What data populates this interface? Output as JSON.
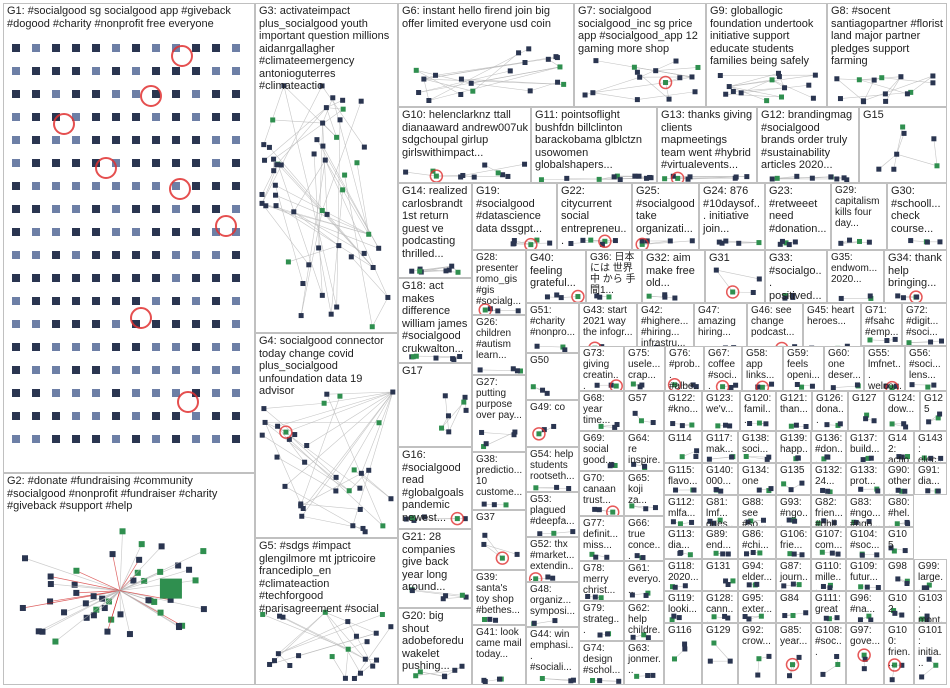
{
  "title": "",
  "groups": [
    {
      "id": "G1",
      "label": "G1: #socialgood sg socialgood app #giveback #dogood #charity #nonprofit free everyone",
      "kind": "grid"
    },
    {
      "id": "G2",
      "label": "G2: #donate #fundraising #community #socialgood #nonprofit #fundraiser #charity #giveback #support #help",
      "kind": "hub"
    },
    {
      "id": "G3",
      "label": "G3: activateimpact plus_socialgood youth important question millions aidanrgallagher #climateemergency antonioguterres #climateactio",
      "kind": "network"
    },
    {
      "id": "G4",
      "label": "G4: socialgood connector today change covid plus_socialgood unfoundation data 19 advisor",
      "kind": "network"
    },
    {
      "id": "G5",
      "label": "G5: #sdgs #impact glengilmore mt jptricoire francediplo_en #climateaction #techforgood #parisagreement #social",
      "kind": "network"
    },
    {
      "id": "G6",
      "label": "G6: instant hello firend join big offer limited everyone usd coin",
      "kind": "network"
    },
    {
      "id": "G7",
      "label": "G7: socialgood socialgood_inc sg price app #socialgood_app 12 gaming more shop",
      "kind": "network"
    },
    {
      "id": "G8",
      "label": "G8: #socent santiagopartner #florist land major partner pledges support farming",
      "kind": "network"
    },
    {
      "id": "G9",
      "label": "G9: globallogic foundation undertook initiative support educate students families being safely",
      "kind": "network"
    },
    {
      "id": "G10",
      "label": "G10: helenclarknz ttall dianaaward andrew007uk sdgchoupal girlup girlswithimpact...",
      "kind": "network"
    },
    {
      "id": "G11",
      "label": "G11: pointsoflight bushfdn billclinton barackobama glblctzn usowomen globalshapers...",
      "kind": "network"
    },
    {
      "id": "G12",
      "label": "G12: brandingmag #socialgood brands order truly #sustainability articles 2020...",
      "kind": "network"
    },
    {
      "id": "G13",
      "label": "G13: thanks giving clients mapmeetings team went #hybrid #virtualevents...",
      "kind": "network"
    },
    {
      "id": "G14",
      "label": "G14: realized carlosbrandt 1st return guest ve podcasting thrilled...",
      "kind": "network"
    },
    {
      "id": "G15",
      "label": "G15",
      "kind": "network"
    },
    {
      "id": "G16",
      "label": "G16: #socialgood read #globalgoals pandemic newest...",
      "kind": "network"
    },
    {
      "id": "G17",
      "label": "G17",
      "kind": "network"
    },
    {
      "id": "G18",
      "label": "G18: act makes difference william james #socialgood crukwalton...",
      "kind": "network"
    },
    {
      "id": "G19",
      "label": "G19: #socialgood #datascience data dssgpt...",
      "kind": "network"
    },
    {
      "id": "G20",
      "label": "G20: big shout adobeforedu wakelet pushing...",
      "kind": "network"
    },
    {
      "id": "G21",
      "label": "G21: 28 companies give back year long around...",
      "kind": "network"
    },
    {
      "id": "G22",
      "label": "G22: citycurrent social entrepreneu...",
      "kind": "network"
    },
    {
      "id": "G23",
      "label": "G23: #retweeet need #donation...",
      "kind": "network"
    },
    {
      "id": "G24",
      "label": "G24: 876 #10daysof... initiative join...",
      "kind": "network"
    },
    {
      "id": "G25",
      "label": "G25: #socialgood take organizati...",
      "kind": "network"
    },
    {
      "id": "G26",
      "label": "G26: children #autism learn...",
      "kind": "network"
    },
    {
      "id": "G27",
      "label": "G27: putting purpose over pay...",
      "kind": "network"
    },
    {
      "id": "G28",
      "label": "G28: presenter romo_gis #gis #socialg...",
      "kind": "network"
    },
    {
      "id": "G29",
      "label": "G29: capitalism kills four day...",
      "kind": "network"
    },
    {
      "id": "G30",
      "label": "G30: #schooll... check course...",
      "kind": "network"
    },
    {
      "id": "G31",
      "label": "G31",
      "kind": "network"
    },
    {
      "id": "G32",
      "label": "G32: aim make free old...",
      "kind": "network"
    },
    {
      "id": "G33",
      "label": "G33: #socialgo... positived...",
      "kind": "network"
    },
    {
      "id": "G34",
      "label": "G34: thank help bringing...",
      "kind": "network"
    },
    {
      "id": "G35",
      "label": "G35: endwom... 2020...",
      "kind": "network"
    },
    {
      "id": "G36",
      "label": "G36: 日本 には 世界中 から 手間1...",
      "kind": "network"
    },
    {
      "id": "G37",
      "label": "G37",
      "kind": "network"
    },
    {
      "id": "G38",
      "label": "G38: predictio... 10 custome...",
      "kind": "network"
    },
    {
      "id": "G39",
      "label": "G39: santa's toy shop #bethes...",
      "kind": "network"
    },
    {
      "id": "G40",
      "label": "G40: feeling grateful...",
      "kind": "network"
    },
    {
      "id": "G41",
      "label": "G41: look came mail today...",
      "kind": "network"
    },
    {
      "id": "G42",
      "label": "G42: #highere... #hiring... infrastru...",
      "kind": "network"
    },
    {
      "id": "G43",
      "label": "G43: start 2021 way the infogr...",
      "kind": "network"
    },
    {
      "id": "G44",
      "label": "G44: win emphasi... #sociali...",
      "kind": "network"
    },
    {
      "id": "G45",
      "label": "G45: heart heroes...",
      "kind": "network"
    },
    {
      "id": "G46",
      "label": "G46: see change podcast...",
      "kind": "network"
    },
    {
      "id": "G47",
      "label": "G47: amazing hiring...",
      "kind": "network"
    },
    {
      "id": "G48",
      "label": "G48: organiz... symposi...",
      "kind": "network"
    },
    {
      "id": "G49",
      "label": "G49: co",
      "kind": "network"
    },
    {
      "id": "G50",
      "label": "G50",
      "kind": "network"
    },
    {
      "id": "G51",
      "label": "G51: #charity #nonpro...",
      "kind": "network"
    },
    {
      "id": "G52",
      "label": "G52: thx #market... extendin...",
      "kind": "network"
    },
    {
      "id": "G53",
      "label": "G53: plagued #deepfa...",
      "kind": "network"
    },
    {
      "id": "G54",
      "label": "G54: help students rootseth...",
      "kind": "network"
    },
    {
      "id": "G55",
      "label": "G55: lmfnet... welco...",
      "kind": "network"
    },
    {
      "id": "G56",
      "label": "G56: #soci... lens...",
      "kind": "network"
    },
    {
      "id": "G57",
      "label": "G57",
      "kind": "network"
    },
    {
      "id": "G58",
      "label": "G58: app links...",
      "kind": "network"
    },
    {
      "id": "G59",
      "label": "G59: feels openi...",
      "kind": "network"
    },
    {
      "id": "G60",
      "label": "G60: one deser...",
      "kind": "network"
    },
    {
      "id": "G61",
      "label": "G61: everyo...",
      "kind": "network"
    },
    {
      "id": "G62",
      "label": "G62: help childre...",
      "kind": "network"
    },
    {
      "id": "G63",
      "label": "G63: jonmer...",
      "kind": "network"
    },
    {
      "id": "G64",
      "label": "G64: re inspire...",
      "kind": "network"
    },
    {
      "id": "G65",
      "label": "G65: koji za...",
      "kind": "network"
    },
    {
      "id": "G66",
      "label": "G66: true conce...",
      "kind": "network"
    },
    {
      "id": "G67",
      "label": "G67: coffee #soci...",
      "kind": "network"
    },
    {
      "id": "G68",
      "label": "G68: year time...",
      "kind": "network"
    },
    {
      "id": "G69",
      "label": "G69: social good...",
      "kind": "network"
    },
    {
      "id": "G70",
      "label": "G70: canaan trust...",
      "kind": "network"
    },
    {
      "id": "G71",
      "label": "G71: #fsahc #emp...",
      "kind": "network"
    },
    {
      "id": "G72",
      "label": "G72: #digit... #soci...",
      "kind": "network"
    },
    {
      "id": "G73",
      "label": "G73: giving creatin...",
      "kind": "network"
    },
    {
      "id": "G74",
      "label": "G74: design #schol...",
      "kind": "network"
    },
    {
      "id": "G75",
      "label": "G75: usele... crap...",
      "kind": "network"
    },
    {
      "id": "G76",
      "label": "G76: #prob... #albe...",
      "kind": "network"
    },
    {
      "id": "G77",
      "label": "G77: definit... miss...",
      "kind": "network"
    },
    {
      "id": "G78",
      "label": "G78: merry christ...",
      "kind": "network"
    },
    {
      "id": "G79",
      "label": "G79: strateg...",
      "kind": "network"
    },
    {
      "id": "G80",
      "label": "G80: #hel... dele...",
      "kind": "network"
    },
    {
      "id": "G81",
      "label": "G81: lmf... ques...",
      "kind": "network"
    },
    {
      "id": "G82",
      "label": "G82: frien... #phil...",
      "kind": "network"
    },
    {
      "id": "G83",
      "label": "G83: #ngo... #ngo...",
      "kind": "network"
    },
    {
      "id": "G84",
      "label": "G84",
      "kind": "network"
    },
    {
      "id": "G85",
      "label": "G85: year...",
      "kind": "network"
    },
    {
      "id": "G86",
      "label": "G86: #chi...",
      "kind": "network"
    },
    {
      "id": "G87",
      "label": "G87: journ...",
      "kind": "network"
    },
    {
      "id": "G88",
      "label": "G88: see #so...",
      "kind": "network"
    },
    {
      "id": "G89",
      "label": "G89: end...",
      "kind": "network"
    },
    {
      "id": "G90",
      "label": "G90: other...",
      "kind": "network"
    },
    {
      "id": "G91",
      "label": "G91: dia...",
      "kind": "network"
    },
    {
      "id": "G92",
      "label": "G92: crow...",
      "kind": "network"
    },
    {
      "id": "G93",
      "label": "G93: #ngo...",
      "kind": "network"
    },
    {
      "id": "G94",
      "label": "G94: elder...",
      "kind": "network"
    },
    {
      "id": "G95",
      "label": "G95: exter...",
      "kind": "network"
    },
    {
      "id": "G96",
      "label": "G96: #na...",
      "kind": "network"
    },
    {
      "id": "G97",
      "label": "G97: gove...",
      "kind": "network"
    },
    {
      "id": "G98",
      "label": "G98",
      "kind": "network"
    },
    {
      "id": "G99",
      "label": "G99: large...",
      "kind": "network"
    },
    {
      "id": "G100",
      "label": "G100: frien...",
      "kind": "network"
    },
    {
      "id": "G101",
      "label": "G101: initia...",
      "kind": "network"
    },
    {
      "id": "G102",
      "label": "G102",
      "kind": "network"
    },
    {
      "id": "G103",
      "label": "G103: mont...",
      "kind": "network"
    },
    {
      "id": "G104",
      "label": "G104: #soc...",
      "kind": "network"
    },
    {
      "id": "G105",
      "label": "G105",
      "kind": "network"
    },
    {
      "id": "G106",
      "label": "G106: frie...",
      "kind": "network"
    },
    {
      "id": "G107",
      "label": "G107: com...",
      "kind": "network"
    },
    {
      "id": "G108",
      "label": "G108: #soc...",
      "kind": "network"
    },
    {
      "id": "G109",
      "label": "G109: futur...",
      "kind": "network"
    },
    {
      "id": "G110",
      "label": "G110: mille...",
      "kind": "network"
    },
    {
      "id": "G111",
      "label": "G111: great",
      "kind": "network"
    },
    {
      "id": "G112",
      "label": "G112: mlfa...",
      "kind": "network"
    },
    {
      "id": "G113",
      "label": "G113: dia...",
      "kind": "network"
    },
    {
      "id": "G114",
      "label": "G114",
      "kind": "network"
    },
    {
      "id": "G115",
      "label": "G115: flavo...",
      "kind": "network"
    },
    {
      "id": "G116",
      "label": "G116",
      "kind": "network"
    },
    {
      "id": "G117",
      "label": "G117: mak...",
      "kind": "network"
    },
    {
      "id": "G118",
      "label": "G118: 2020...",
      "kind": "network"
    },
    {
      "id": "G119",
      "label": "G119: looki...",
      "kind": "network"
    },
    {
      "id": "G120",
      "label": "G120: famil...",
      "kind": "network"
    },
    {
      "id": "G121",
      "label": "G121: than...",
      "kind": "network"
    },
    {
      "id": "G122",
      "label": "G122: #kno...",
      "kind": "network"
    },
    {
      "id": "G123",
      "label": "G123: we'v...",
      "kind": "network"
    },
    {
      "id": "G124",
      "label": "G124: dow...",
      "kind": "network"
    },
    {
      "id": "G125",
      "label": "G125",
      "kind": "network"
    },
    {
      "id": "G126",
      "label": "G126: dona...",
      "kind": "network"
    },
    {
      "id": "G127",
      "label": "G127",
      "kind": "network"
    },
    {
      "id": "G128",
      "label": "G128: cann...",
      "kind": "network"
    },
    {
      "id": "G129",
      "label": "G129",
      "kind": "network"
    },
    {
      "id": "G130",
      "label": "G130: 000...",
      "kind": "network"
    },
    {
      "id": "G131",
      "label": "G131",
      "kind": "network"
    },
    {
      "id": "G132",
      "label": "G132: 24...",
      "kind": "network"
    },
    {
      "id": "G133",
      "label": "G133: prot...",
      "kind": "network"
    },
    {
      "id": "G134",
      "label": "G134: one",
      "kind": "network"
    },
    {
      "id": "G135",
      "label": "G135",
      "kind": "network"
    },
    {
      "id": "G136",
      "label": "G136: #don...",
      "kind": "network"
    },
    {
      "id": "G137",
      "label": "G137: build...",
      "kind": "network"
    },
    {
      "id": "G138",
      "label": "G138: soci...",
      "kind": "network"
    },
    {
      "id": "G139",
      "label": "G139: happ...",
      "kind": "network"
    },
    {
      "id": "G140",
      "label": "G140: 000...",
      "kind": "network"
    },
    {
      "id": "G141",
      "label": "G141",
      "kind": "network"
    },
    {
      "id": "G142",
      "label": "G142: actio...",
      "kind": "network"
    },
    {
      "id": "G143",
      "label": "G143: elec...",
      "kind": "network"
    }
  ],
  "colors": {
    "border": "#c0c0c0",
    "edge": "#b8b8b8",
    "loop": "#e03030",
    "node_dark": "#2a3550",
    "node_mid": "#6d7fa6",
    "node_green": "#2f8f4f",
    "highlight": "#d02020"
  }
}
